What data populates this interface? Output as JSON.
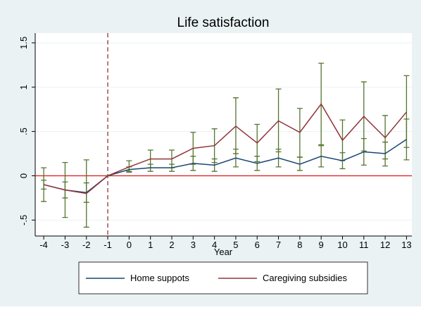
{
  "chart_data": {
    "type": "line",
    "title": "Life satisfaction",
    "xlabel": "Year",
    "x": [
      -4,
      -3,
      -2,
      -1,
      0,
      1,
      2,
      3,
      4,
      5,
      6,
      7,
      8,
      9,
      10,
      11,
      12,
      13
    ],
    "series": [
      {
        "name": "Home suppots",
        "color": "#1a476f",
        "values": [
          -0.1,
          -0.16,
          -0.19,
          0,
          0.07,
          0.09,
          0.09,
          0.14,
          0.12,
          0.2,
          0.14,
          0.2,
          0.13,
          0.22,
          0.17,
          0.27,
          0.25,
          0.41
        ],
        "ci_low": [
          -0.15,
          -0.25,
          -0.3,
          0,
          0.04,
          0.05,
          0.05,
          0.06,
          0.05,
          0.1,
          0.06,
          0.1,
          0.06,
          0.1,
          0.08,
          0.12,
          0.11,
          0.18
        ],
        "ci_high": [
          -0.05,
          -0.07,
          -0.08,
          0,
          0.1,
          0.13,
          0.13,
          0.22,
          0.19,
          0.3,
          0.22,
          0.3,
          0.21,
          0.34,
          0.26,
          0.42,
          0.38,
          0.64
        ]
      },
      {
        "name": "Caregiving subsidies",
        "color": "#90353b",
        "values": [
          -0.1,
          -0.16,
          -0.2,
          0,
          0.1,
          0.19,
          0.19,
          0.31,
          0.34,
          0.56,
          0.37,
          0.62,
          0.49,
          0.81,
          0.4,
          0.67,
          0.43,
          0.72
        ],
        "ci_low": [
          -0.29,
          -0.47,
          -0.58,
          0,
          0.05,
          0.09,
          0.09,
          0.13,
          0.15,
          0.25,
          0.16,
          0.27,
          0.21,
          0.35,
          0.17,
          0.28,
          0.19,
          0.32
        ],
        "ci_high": [
          0.09,
          0.15,
          0.18,
          0,
          0.17,
          0.29,
          0.29,
          0.49,
          0.53,
          0.88,
          0.58,
          0.98,
          0.76,
          1.27,
          0.63,
          1.06,
          0.68,
          1.13
        ]
      }
    ],
    "error_color": "#55752f",
    "xlim": [
      -4.4,
      13.25
    ],
    "xticks": [
      -4,
      -3,
      -2,
      -1,
      0,
      1,
      2,
      3,
      4,
      5,
      6,
      7,
      8,
      9,
      10,
      11,
      12,
      13
    ],
    "ylim": [
      -0.68,
      1.61
    ],
    "yticks": [
      {
        "value": -0.5,
        "label": "-.5"
      },
      0,
      {
        "value": 0.5,
        "label": ".5"
      },
      1,
      1.5
    ],
    "grid": true,
    "vline": -1,
    "vline_color": "#90353b",
    "hline": 0,
    "hline_color": "#e3141b",
    "legend": "bottom"
  }
}
